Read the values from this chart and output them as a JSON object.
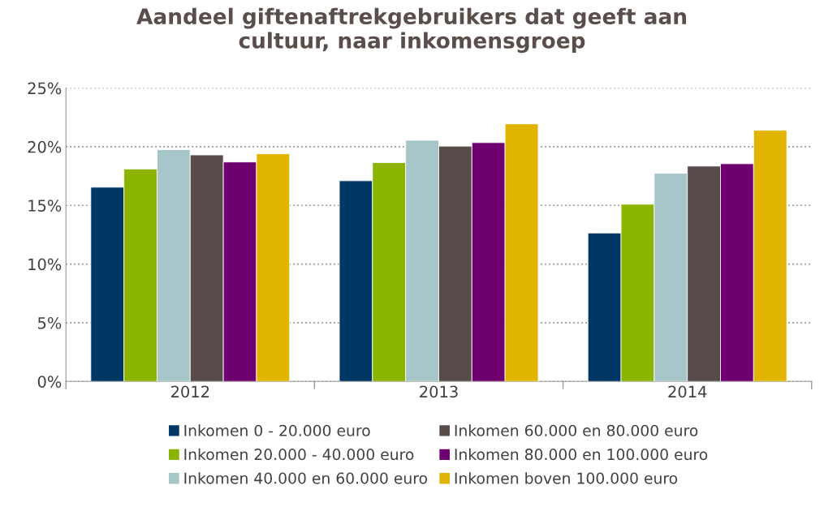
{
  "chart_data": {
    "type": "bar",
    "title": "Aandeel giftenaftrekgebruikers dat geeft aan\ncultuur, naar inkomensgroep",
    "categories": [
      "2012",
      "2013",
      "2014"
    ],
    "series": [
      {
        "name": "Inkomen 0 - 20.000 euro",
        "color": "#003764",
        "values": [
          16.55,
          17.1,
          12.65
        ]
      },
      {
        "name": "Inkomen 20.000 - 40.000 euro",
        "color": "#8ab400",
        "values": [
          18.1,
          18.65,
          15.1
        ]
      },
      {
        "name": "Inkomen 40.000 en 60.000 euro",
        "color": "#a6c6c9",
        "values": [
          19.75,
          20.55,
          17.75
        ]
      },
      {
        "name": "Inkomen 60.000 en 80.000 euro",
        "color": "#574c4a",
        "values": [
          19.3,
          20.05,
          18.35
        ]
      },
      {
        "name": "Inkomen 80.000 en 100.000 euro",
        "color": "#6f006f",
        "values": [
          18.7,
          20.35,
          18.55
        ]
      },
      {
        "name": "Inkomen boven 100.000 euro",
        "color": "#e1b400",
        "values": [
          19.4,
          21.95,
          21.4
        ]
      }
    ],
    "ylim": [
      0,
      25
    ],
    "yticks": [
      {
        "value": 0,
        "label": "0%"
      },
      {
        "value": 5,
        "label": "5%"
      },
      {
        "value": 10,
        "label": "10%"
      },
      {
        "value": 15,
        "label": "15%"
      },
      {
        "value": 20,
        "label": "20%"
      },
      {
        "value": 25,
        "label": "25%"
      }
    ],
    "grid": "y",
    "legend": "bottom"
  }
}
